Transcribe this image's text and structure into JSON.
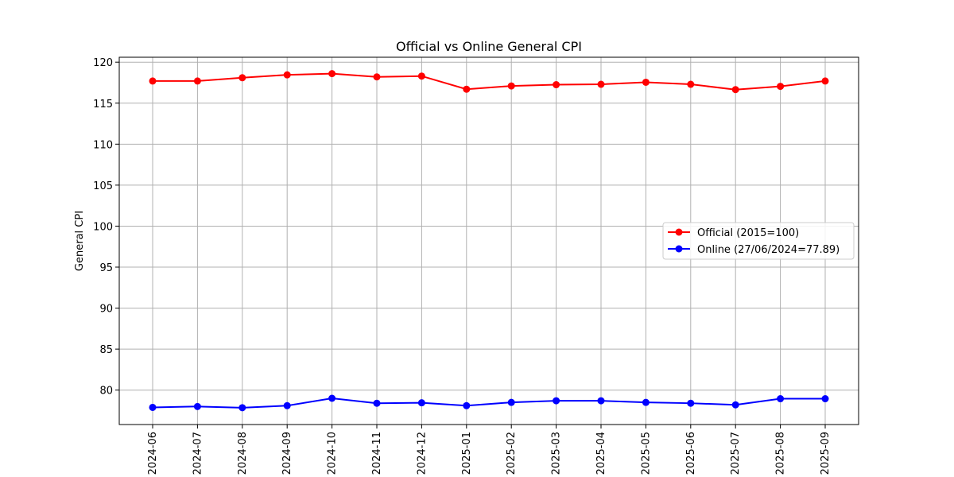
{
  "chart_data": {
    "type": "line",
    "title": "Official vs Online General CPI",
    "xlabel": "",
    "ylabel": "General CPI",
    "categories": [
      "2024-06",
      "2024-07",
      "2024-08",
      "2024-09",
      "2024-10",
      "2024-11",
      "2024-12",
      "2025-01",
      "2025-02",
      "2025-03",
      "2025-04",
      "2025-05",
      "2025-06",
      "2025-07",
      "2025-08",
      "2025-09"
    ],
    "ylim": [
      75.8,
      120.6
    ],
    "yticks": [
      80,
      85,
      90,
      95,
      100,
      105,
      110,
      115,
      120
    ],
    "grid": true,
    "legend_position": "center-right",
    "series": [
      {
        "name": "Official (2015=100)",
        "color": "#ff0000",
        "marker": "circle",
        "values": [
          117.7,
          117.7,
          118.1,
          118.45,
          118.6,
          118.2,
          118.3,
          116.7,
          117.1,
          117.25,
          117.3,
          117.55,
          117.3,
          116.65,
          117.05,
          117.7
        ]
      },
      {
        "name": "Online (27/06/2024=77.89)",
        "color": "#0000ff",
        "marker": "circle",
        "values": [
          77.89,
          78.0,
          77.85,
          78.1,
          79.0,
          78.4,
          78.45,
          78.1,
          78.5,
          78.7,
          78.7,
          78.5,
          78.4,
          78.2,
          78.95,
          78.95
        ]
      }
    ]
  }
}
